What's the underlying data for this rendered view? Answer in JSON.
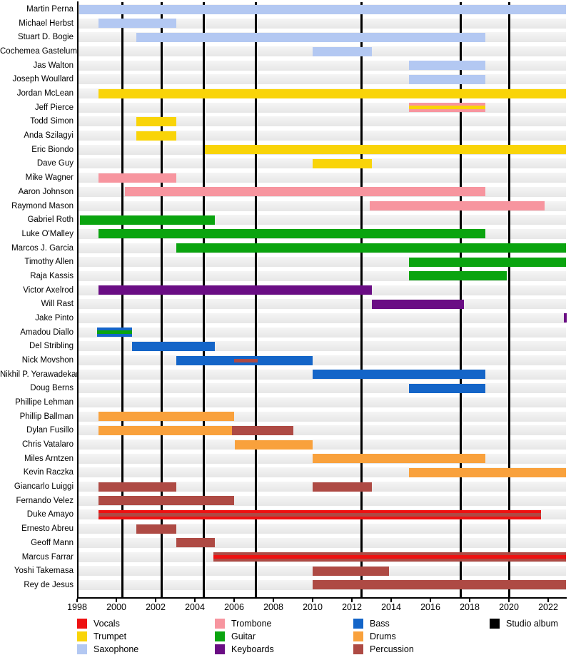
{
  "chart_data": {
    "type": "timeline",
    "title": "",
    "x_axis": {
      "tick_years": [
        1998,
        2000,
        2002,
        2004,
        2006,
        2008,
        2010,
        2012,
        2014,
        2016,
        2018,
        2020,
        2022
      ],
      "range": [
        1998,
        2023
      ]
    },
    "album_release_years": [
      2000.3,
      2002.3,
      2004.45,
      2007.1,
      2012.5,
      2017.55,
      2020.0
    ],
    "instrument_colors": {
      "Vocals": "#ee1111",
      "Trumpet": "#f9d408",
      "Saxophone": "#b3c8f2",
      "Trombone": "#f7959f",
      "Guitar": "#0aa40f",
      "Keyboards": "#6a0d84",
      "Bass": "#1465c8",
      "Drums": "#f9a13c",
      "Percussion": "#ae4a44",
      "Studio album": "#000000"
    },
    "legend": {
      "columns": [
        [
          {
            "label": "Vocals",
            "color_key": "Vocals"
          },
          {
            "label": "Trumpet",
            "color_key": "Trumpet"
          },
          {
            "label": "Saxophone",
            "color_key": "Saxophone"
          }
        ],
        [
          {
            "label": "Trombone",
            "color_key": "Trombone"
          },
          {
            "label": "Guitar",
            "color_key": "Guitar"
          },
          {
            "label": "Keyboards",
            "color_key": "Keyboards"
          }
        ],
        [
          {
            "label": "Bass",
            "color_key": "Bass"
          },
          {
            "label": "Drums",
            "color_key": "Drums"
          },
          {
            "label": "Percussion",
            "color_key": "Percussion"
          }
        ],
        [
          {
            "label": "Studio album",
            "color_key": "Studio album"
          }
        ]
      ]
    },
    "members": [
      {
        "name": "Martin Perna",
        "bars": [
          {
            "instrument": "Saxophone",
            "start": 1998.1,
            "end": 2022.9
          }
        ]
      },
      {
        "name": "Michael Herbst",
        "bars": [
          {
            "instrument": "Saxophone",
            "start": 1999.1,
            "end": 2003.05
          }
        ]
      },
      {
        "name": "Stuart D. Bogie",
        "bars": [
          {
            "instrument": "Saxophone",
            "start": 2001.0,
            "end": 2018.8
          }
        ]
      },
      {
        "name": "Cochemea Gastelum",
        "bars": [
          {
            "instrument": "Saxophone",
            "start": 2010.0,
            "end": 2013.0
          }
        ]
      },
      {
        "name": "Jas Walton",
        "bars": [
          {
            "instrument": "Saxophone",
            "start": 2014.9,
            "end": 2018.8
          }
        ]
      },
      {
        "name": "Joseph Woullard",
        "bars": [
          {
            "instrument": "Saxophone",
            "start": 2014.9,
            "end": 2018.8
          }
        ]
      },
      {
        "name": "Jordan McLean",
        "bars": [
          {
            "instrument": "Trumpet",
            "start": 1999.1,
            "end": 2022.9
          }
        ]
      },
      {
        "name": "Jeff Pierce",
        "bars": [
          {
            "instrument": "Trombone",
            "start": 2014.9,
            "end": 2018.8,
            "stripe_instrument": "Trumpet"
          }
        ]
      },
      {
        "name": "Todd Simon",
        "bars": [
          {
            "instrument": "Trumpet",
            "start": 2001.0,
            "end": 2003.05
          }
        ]
      },
      {
        "name": "Anda Szilagyi",
        "bars": [
          {
            "instrument": "Trumpet",
            "start": 2001.0,
            "end": 2003.05
          }
        ]
      },
      {
        "name": "Eric Biondo",
        "bars": [
          {
            "instrument": "Trumpet",
            "start": 2004.5,
            "end": 2022.9
          }
        ]
      },
      {
        "name": "Dave Guy",
        "bars": [
          {
            "instrument": "Trumpet",
            "start": 2010.0,
            "end": 2013.0
          }
        ]
      },
      {
        "name": "Mike Wagner",
        "bars": [
          {
            "instrument": "Trombone",
            "start": 1999.1,
            "end": 2003.05
          }
        ]
      },
      {
        "name": "Aaron Johnson",
        "bars": [
          {
            "instrument": "Trombone",
            "start": 2000.45,
            "end": 2018.8
          }
        ]
      },
      {
        "name": "Raymond Mason",
        "bars": [
          {
            "instrument": "Trombone",
            "start": 2012.9,
            "end": 2021.8
          }
        ]
      },
      {
        "name": "Gabriel Roth",
        "bars": [
          {
            "instrument": "Guitar",
            "start": 1998.15,
            "end": 2005.0
          }
        ]
      },
      {
        "name": "Luke O'Malley",
        "bars": [
          {
            "instrument": "Guitar",
            "start": 1999.1,
            "end": 2018.8
          }
        ]
      },
      {
        "name": "Marcos J. Garcia",
        "bars": [
          {
            "instrument": "Guitar",
            "start": 2003.05,
            "end": 2022.9
          }
        ]
      },
      {
        "name": "Timothy Allen",
        "bars": [
          {
            "instrument": "Guitar",
            "start": 2014.9,
            "end": 2022.9
          }
        ]
      },
      {
        "name": "Raja Kassis",
        "bars": [
          {
            "instrument": "Guitar",
            "start": 2014.9,
            "end": 2019.9
          }
        ]
      },
      {
        "name": "Victor Axelrod",
        "bars": [
          {
            "instrument": "Keyboards",
            "start": 1999.1,
            "end": 2013.0
          }
        ]
      },
      {
        "name": "Will Rast",
        "bars": [
          {
            "instrument": "Keyboards",
            "start": 2013.0,
            "end": 2017.7
          }
        ]
      },
      {
        "name": "Jake Pinto",
        "bars": [
          {
            "instrument": "Keyboards",
            "start": 2022.8,
            "end": 2022.95
          }
        ]
      },
      {
        "name": "Amadou Diallo",
        "bars": [
          {
            "instrument": "Bass",
            "start": 1999.0,
            "end": 2000.8,
            "stripe_instrument": "Guitar"
          }
        ]
      },
      {
        "name": "Del Stribling",
        "bars": [
          {
            "instrument": "Bass",
            "start": 2000.8,
            "end": 2005.0
          }
        ]
      },
      {
        "name": "Nick Movshon",
        "bars": [
          {
            "instrument": "Bass",
            "start": 2003.05,
            "end": 2010.0,
            "stripe_instrument": "Percussion",
            "stripe_start": 2006.0,
            "stripe_end": 2007.2
          }
        ]
      },
      {
        "name": "Nikhil P. Yerawadekar",
        "bars": [
          {
            "instrument": "Bass",
            "start": 2010.0,
            "end": 2018.8
          }
        ]
      },
      {
        "name": "Doug Berns",
        "bars": [
          {
            "instrument": "Bass",
            "start": 2014.9,
            "end": 2018.8
          }
        ]
      },
      {
        "name": "Phillipe Lehman",
        "bars": []
      },
      {
        "name": "Phillip Ballman",
        "bars": [
          {
            "instrument": "Drums",
            "start": 1999.1,
            "end": 2006.0
          }
        ]
      },
      {
        "name": "Dylan Fusillo",
        "bars": [
          {
            "instrument": "Drums",
            "start": 1999.1,
            "end": 2005.9
          },
          {
            "instrument": "Percussion",
            "start": 2005.9,
            "end": 2009.0
          }
        ]
      },
      {
        "name": "Chris Vatalaro",
        "bars": [
          {
            "instrument": "Drums",
            "start": 2006.05,
            "end": 2010.0
          }
        ]
      },
      {
        "name": "Miles Arntzen",
        "bars": [
          {
            "instrument": "Drums",
            "start": 2010.0,
            "end": 2018.8
          }
        ]
      },
      {
        "name": "Kevin Raczka",
        "bars": [
          {
            "instrument": "Drums",
            "start": 2014.9,
            "end": 2022.9
          }
        ]
      },
      {
        "name": "Giancarlo Luiggi",
        "bars": [
          {
            "instrument": "Percussion",
            "start": 1999.1,
            "end": 2003.05
          },
          {
            "instrument": "Percussion",
            "start": 2010.0,
            "end": 2013.0
          }
        ]
      },
      {
        "name": "Fernando Velez",
        "bars": [
          {
            "instrument": "Percussion",
            "start": 1999.1,
            "end": 2006.0
          }
        ]
      },
      {
        "name": "Duke Amayo",
        "bars": [
          {
            "instrument": "Vocals",
            "start": 1999.1,
            "end": 2021.65,
            "stripe_instrument": "Percussion"
          }
        ]
      },
      {
        "name": "Ernesto Abreu",
        "bars": [
          {
            "instrument": "Percussion",
            "start": 2001.0,
            "end": 2003.05
          }
        ]
      },
      {
        "name": "Geoff Mann",
        "bars": [
          {
            "instrument": "Percussion",
            "start": 2003.05,
            "end": 2005.0
          }
        ]
      },
      {
        "name": "Marcus Farrar",
        "bars": [
          {
            "instrument": "Percussion",
            "start": 2004.95,
            "end": 2022.9,
            "stripe_instrument": "Vocals"
          }
        ]
      },
      {
        "name": "Yoshi Takemasa",
        "bars": [
          {
            "instrument": "Percussion",
            "start": 2010.0,
            "end": 2013.9
          }
        ]
      },
      {
        "name": "Rey de Jesus",
        "bars": [
          {
            "instrument": "Percussion",
            "start": 2010.0,
            "end": 2022.9
          }
        ]
      }
    ]
  }
}
